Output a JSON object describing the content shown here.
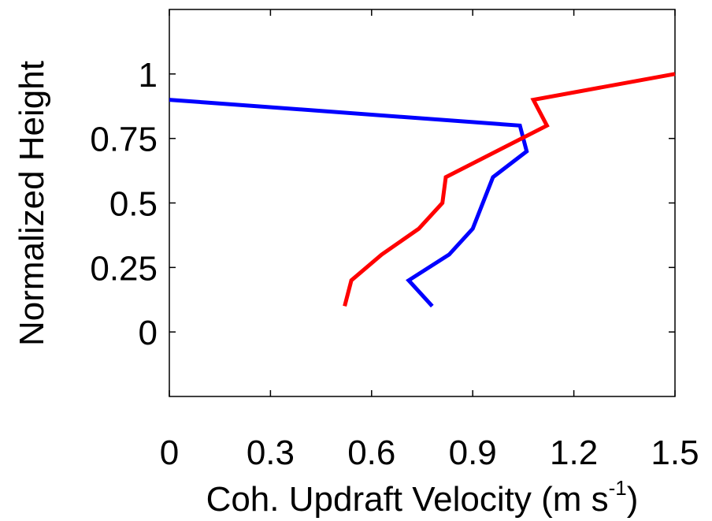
{
  "chart_data": {
    "type": "line",
    "title": "",
    "xlabel": "Coh. Updraft Velocity (m s",
    "xlabel_unit_sup": "-1",
    "xlabel_close": ")",
    "ylabel": "Normalized Height",
    "xlim": [
      0,
      1.5
    ],
    "ylim": [
      -0.25,
      1.25
    ],
    "xticks": [
      0,
      0.3,
      0.6,
      0.9,
      1.2,
      1.5
    ],
    "xtick_labels": [
      "0",
      "0.3",
      "0.6",
      "0.9",
      "1.2",
      "1.5"
    ],
    "yticks": [
      0,
      0.25,
      0.5,
      0.75,
      1
    ],
    "ytick_labels": [
      "0",
      "0.25",
      "0.5",
      "0.75",
      "1"
    ],
    "grid": false,
    "series": [
      {
        "color": "#0000ff",
        "x": [
          0.78,
          0.71,
          0.83,
          0.9,
          0.96,
          1.06,
          1.04,
          0.0
        ],
        "y": [
          0.1,
          0.2,
          0.3,
          0.4,
          0.6,
          0.7,
          0.8,
          0.9
        ]
      },
      {
        "color": "#ff0000",
        "x": [
          0.52,
          0.54,
          0.63,
          0.74,
          0.81,
          0.82,
          1.12,
          1.08,
          1.5
        ],
        "y": [
          0.1,
          0.2,
          0.3,
          0.4,
          0.5,
          0.6,
          0.8,
          0.9,
          1.0
        ]
      }
    ]
  }
}
